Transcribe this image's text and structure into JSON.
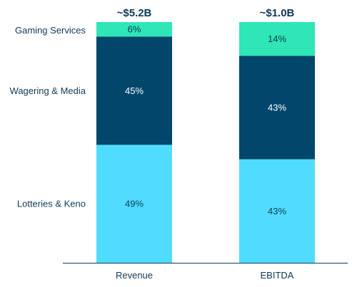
{
  "chart_data": {
    "type": "bar",
    "stacked": true,
    "percent_stacked": true,
    "categories": [
      "Revenue",
      "EBITDA"
    ],
    "totals": [
      "~$5.2B",
      "~$1.0B"
    ],
    "series": [
      {
        "name": "Lotteries & Keno",
        "values": [
          49,
          43
        ],
        "labels": [
          "49%",
          "43%"
        ],
        "color": "#50dcff",
        "text_color": "#0f3b57"
      },
      {
        "name": "Wagering & Media",
        "values": [
          45,
          43
        ],
        "labels": [
          "45%",
          "43%"
        ],
        "color": "#00476b",
        "text_color": "#ffffff"
      },
      {
        "name": "Gaming Services",
        "values": [
          6,
          14
        ],
        "labels": [
          "6%",
          "14%"
        ],
        "color": "#2ee6b6",
        "text_color": "#0f3b57"
      }
    ],
    "ylim": [
      0,
      100
    ],
    "legend": "left",
    "grid": false,
    "xlabel": "",
    "ylabel": ""
  }
}
